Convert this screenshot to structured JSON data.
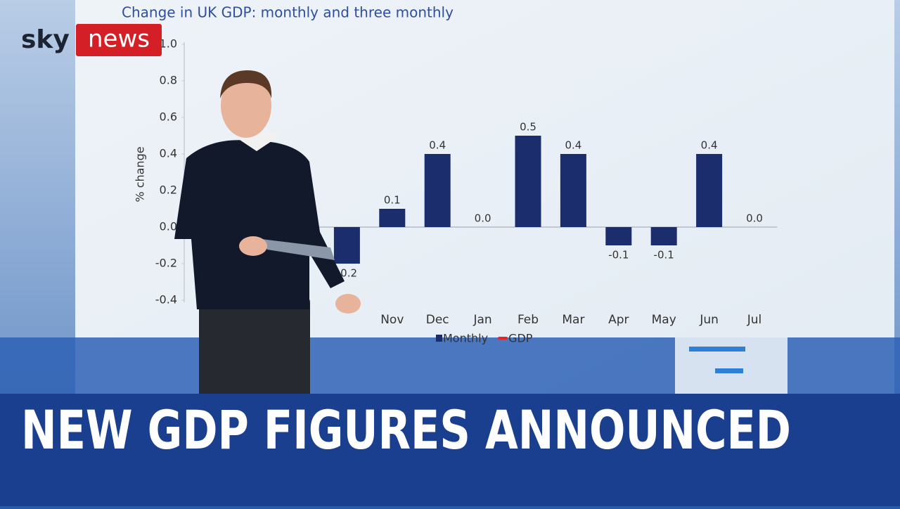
{
  "chart_data": {
    "type": "bar",
    "title": "Change in UK GDP: monthly and three monthly",
    "y_label": "% change",
    "categories": [
      null,
      null,
      null,
      null,
      "Nov",
      "Dec",
      "Jan",
      "Feb",
      "Mar",
      "Apr",
      "May",
      "Jun",
      "Jul"
    ],
    "series": [
      {
        "name": "Monthly",
        "color": "#1c2d6e",
        "values": [
          null,
          null,
          null,
          -0.2,
          0.1,
          0.4,
          0,
          0.5,
          0.4,
          -0.1,
          -0.1,
          0.4,
          0
        ],
        "value_labels": [
          null,
          null,
          null,
          "-0.2",
          "0.1",
          "0.4",
          "0.0",
          "0.5",
          "0.4",
          "-0.1",
          "-0.1",
          "0.4",
          "0.0"
        ]
      },
      {
        "name": "GDP",
        "color": "#e3262b",
        "values": [
          null,
          null,
          null,
          null,
          null,
          null,
          null,
          null,
          null,
          null,
          null,
          null,
          null
        ]
      }
    ],
    "ylim": [
      -0.4,
      1.0
    ],
    "yticks": [
      -0.4,
      -0.2,
      {
        "value": 0,
        "label": "0.0"
      },
      0.2,
      0.4,
      0.6,
      0.8,
      {
        "value": 1,
        "label": "1.0"
      }
    ],
    "grid": false
  },
  "overlay": {
    "brand_sky": "sky",
    "brand_news": "news",
    "headline": "NEW GDP FIGURES ANNOUNCED"
  }
}
